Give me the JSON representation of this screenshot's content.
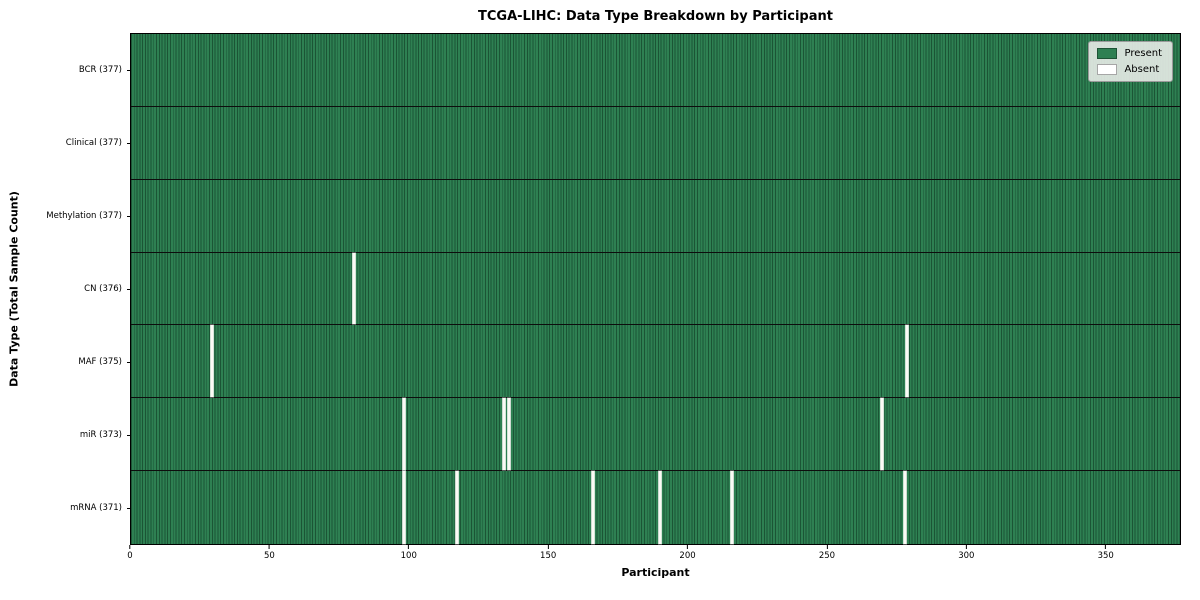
{
  "chart_data": {
    "type": "heatmap",
    "title": "TCGA-LIHC: Data Type Breakdown by Participant",
    "xlabel": "Participant",
    "ylabel": "Data Type (Total Sample Count)",
    "x_range": [
      0,
      377
    ],
    "x_ticks": [
      0,
      50,
      100,
      150,
      200,
      250,
      300,
      350
    ],
    "present_color": "#2e8052",
    "absent_color": "#fbfbf6",
    "grid_line_color": "#0d3a20",
    "legend": [
      {
        "label": "Present",
        "color": "#2e8052"
      },
      {
        "label": "Absent",
        "color": "#ffffff"
      }
    ],
    "rows": [
      {
        "label": "BCR (377)",
        "total": 377,
        "absent_participants": []
      },
      {
        "label": "Clinical (377)",
        "total": 377,
        "absent_participants": []
      },
      {
        "label": "Methylation (377)",
        "total": 377,
        "absent_participants": []
      },
      {
        "label": "CN (376)",
        "total": 376,
        "absent_participants": [
          80
        ]
      },
      {
        "label": "MAF (375)",
        "total": 375,
        "absent_participants": [
          29,
          279
        ]
      },
      {
        "label": "miR (373)",
        "total": 373,
        "absent_participants": [
          98,
          134,
          136,
          270
        ]
      },
      {
        "label": "mRNA (371)",
        "total": 371,
        "absent_participants": [
          98,
          117,
          166,
          190,
          216,
          278
        ]
      }
    ]
  }
}
